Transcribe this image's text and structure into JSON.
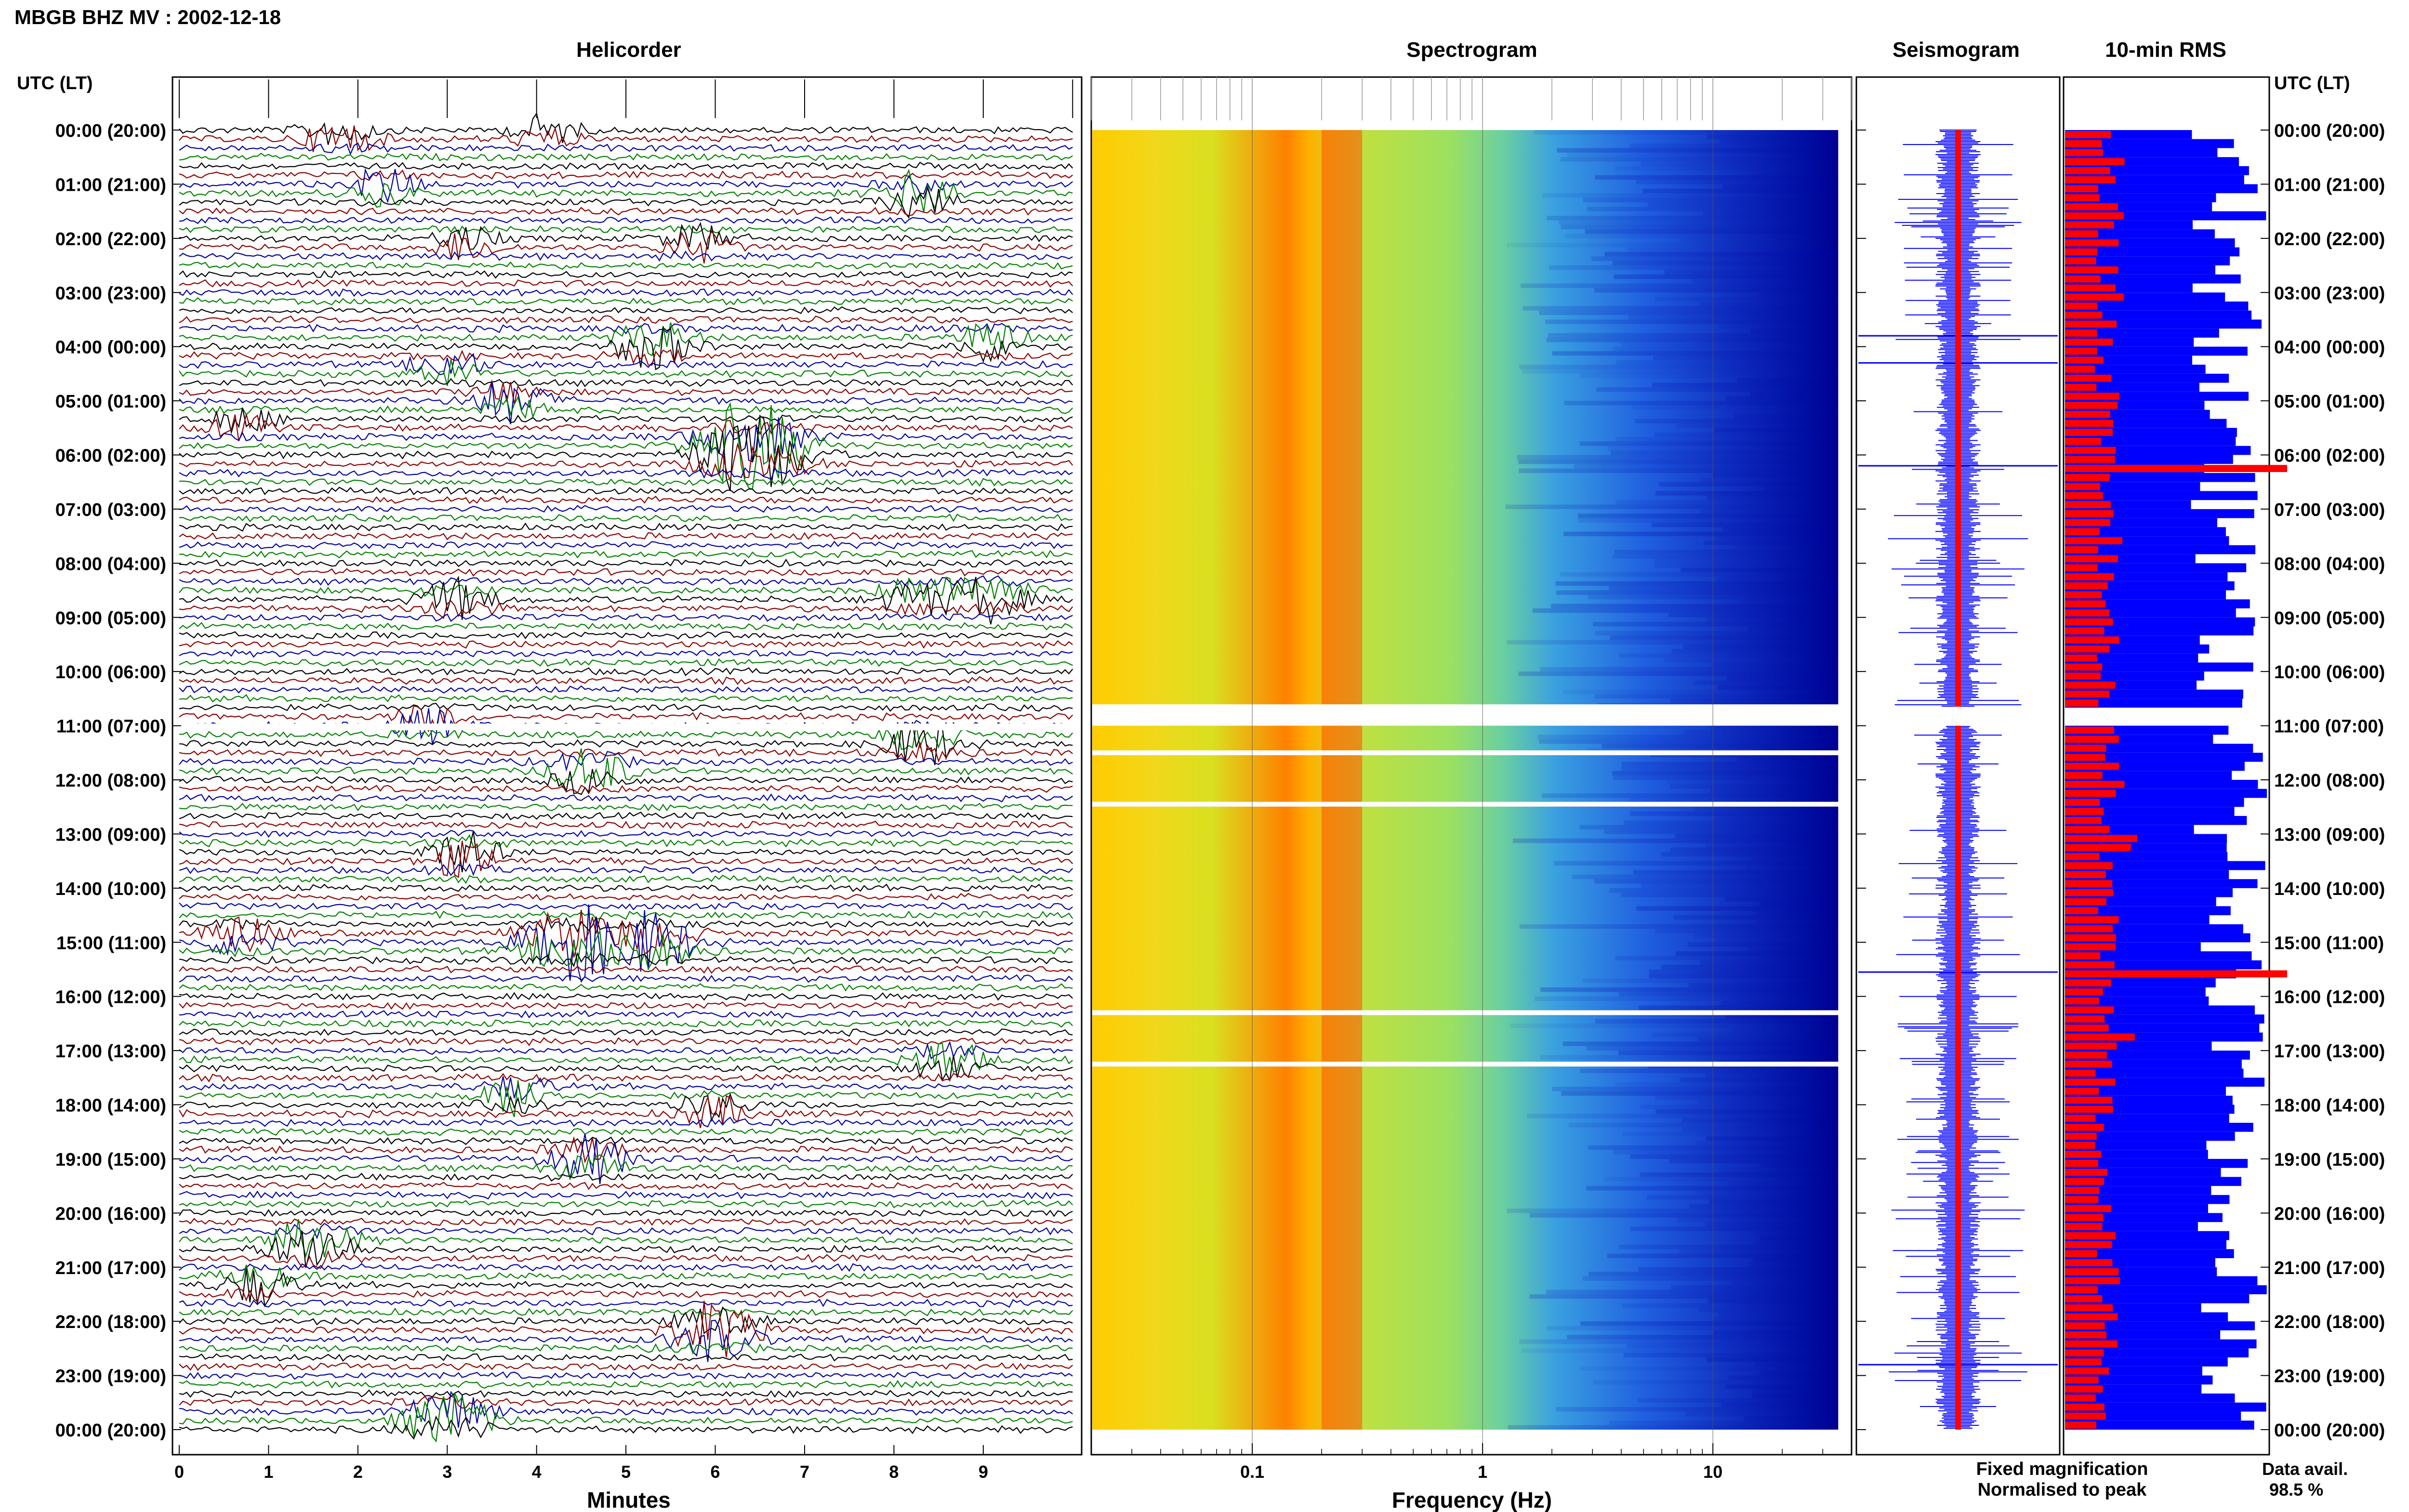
{
  "header": {
    "station_title": "MBGB BHZ MV : 2002-12-18"
  },
  "panels": {
    "helicorder_title": "Helicorder",
    "spectrogram_title": "Spectrogram",
    "seismogram_title": "Seismogram",
    "rms_title": "10-min RMS"
  },
  "time_axis": {
    "left_header": "UTC (LT)",
    "right_header": "UTC (LT)",
    "labels": [
      "00:00 (20:00)",
      "01:00 (21:00)",
      "02:00 (22:00)",
      "03:00 (23:00)",
      "04:00 (00:00)",
      "05:00 (01:00)",
      "06:00 (02:00)",
      "07:00 (03:00)",
      "08:00 (04:00)",
      "09:00 (05:00)",
      "10:00 (06:00)",
      "11:00 (07:00)",
      "12:00 (08:00)",
      "13:00 (09:00)",
      "14:00 (10:00)",
      "15:00 (11:00)",
      "16:00 (12:00)",
      "17:00 (13:00)",
      "18:00 (14:00)",
      "19:00 (15:00)",
      "20:00 (16:00)",
      "21:00 (17:00)",
      "22:00 (18:00)",
      "23:00 (19:00)",
      "00:00 (20:00)"
    ]
  },
  "helicorder_axis": {
    "xlabel": "Minutes",
    "ticks": [
      "0",
      "1",
      "2",
      "3",
      "4",
      "5",
      "6",
      "7",
      "8",
      "9"
    ]
  },
  "spectrogram_axis": {
    "xlabel": "Frequency (Hz)",
    "ticks": [
      "0.1",
      "1",
      "10"
    ]
  },
  "legend": {
    "fixed": "Fixed magnification",
    "normalised": "Normalised to peak",
    "fixed_color": "#0000ff",
    "normalised_color": "#ff0000"
  },
  "availability": {
    "label": "Data avail.",
    "value": "98.5 %"
  },
  "colors": {
    "trace_colors": [
      "#000000",
      "#8b0000",
      "#0000a0",
      "#008000"
    ],
    "rms_fixed": "#0000ff",
    "rms_normalised": "#ff0000"
  },
  "chart_data": [
    {
      "type": "line",
      "title": "Helicorder",
      "xlabel": "Minutes",
      "xlim": [
        0,
        10
      ],
      "rows_per_hour": 6,
      "hours": 24,
      "events": [
        {
          "hour": 0.05,
          "minute": 4.1,
          "strength": 0.9
        },
        {
          "hour": 0.1,
          "minute": 1.8,
          "strength": 1.1
        },
        {
          "hour": 1.05,
          "minute": 2.3,
          "strength": 1.0
        },
        {
          "hour": 1.2,
          "minute": 8.3,
          "strength": 1.2
        },
        {
          "hour": 2.1,
          "minute": 3.2,
          "strength": 0.9
        },
        {
          "hour": 2.1,
          "minute": 5.8,
          "strength": 1.0
        },
        {
          "hour": 3.95,
          "minute": 5.3,
          "strength": 1.3
        },
        {
          "hour": 3.9,
          "minute": 9.1,
          "strength": 1.0
        },
        {
          "hour": 4.4,
          "minute": 3.0,
          "strength": 1.0
        },
        {
          "hour": 5.0,
          "minute": 3.7,
          "strength": 1.2
        },
        {
          "hour": 5.4,
          "minute": 0.7,
          "strength": 0.9
        },
        {
          "hour": 5.9,
          "minute": 6.4,
          "strength": 2.6
        },
        {
          "hour": 8.6,
          "minute": 9.0,
          "strength": 1.4
        },
        {
          "hour": 8.6,
          "minute": 8.2,
          "strength": 1.0
        },
        {
          "hour": 8.7,
          "minute": 3.1,
          "strength": 1.1
        },
        {
          "hour": 10.95,
          "minute": 2.8,
          "strength": 1.0
        },
        {
          "hour": 11.3,
          "minute": 8.3,
          "strength": 1.3
        },
        {
          "hour": 11.85,
          "minute": 4.6,
          "strength": 1.3
        },
        {
          "hour": 13.4,
          "minute": 3.2,
          "strength": 1.2
        },
        {
          "hour": 14.9,
          "minute": 0.7,
          "strength": 1.1
        },
        {
          "hour": 15.0,
          "minute": 4.4,
          "strength": 2.0
        },
        {
          "hour": 15.0,
          "minute": 5.3,
          "strength": 1.6
        },
        {
          "hour": 17.2,
          "minute": 8.6,
          "strength": 1.1
        },
        {
          "hour": 17.8,
          "minute": 3.8,
          "strength": 1.1
        },
        {
          "hour": 18.1,
          "minute": 6.0,
          "strength": 1.0
        },
        {
          "hour": 19.0,
          "minute": 4.6,
          "strength": 1.3
        },
        {
          "hour": 20.6,
          "minute": 1.5,
          "strength": 1.5
        },
        {
          "hour": 21.3,
          "minute": 0.9,
          "strength": 1.1
        },
        {
          "hour": 22.2,
          "minute": 6.0,
          "strength": 1.6
        },
        {
          "hour": 23.8,
          "minute": 3.0,
          "strength": 1.6
        }
      ]
    },
    {
      "type": "heatmap",
      "title": "Spectrogram",
      "xlabel": "Frequency (Hz)",
      "xscale": "log",
      "xlim": [
        0.02,
        40
      ],
      "hours": 24,
      "data_limit_hz": 35,
      "peak_band_hz": [
        0.2,
        0.3
      ],
      "gaps_hours": [
        10.65,
        11.5,
        12.45,
        16.3,
        17.25
      ]
    },
    {
      "type": "area",
      "title": "Seismogram",
      "hours": 24,
      "spikes_hours": [
        3.8,
        4.3,
        6.2,
        15.55,
        22.8
      ]
    },
    {
      "type": "bar",
      "title": "10-min RMS",
      "orientation": "horizontal",
      "interval_minutes": 10,
      "hours": 24,
      "series": [
        {
          "name": "Fixed magnification",
          "color": "#0000ff"
        },
        {
          "name": "Normalised to peak",
          "color": "#ff0000"
        }
      ],
      "peaks_hours": [
        6.2,
        15.55
      ]
    }
  ]
}
